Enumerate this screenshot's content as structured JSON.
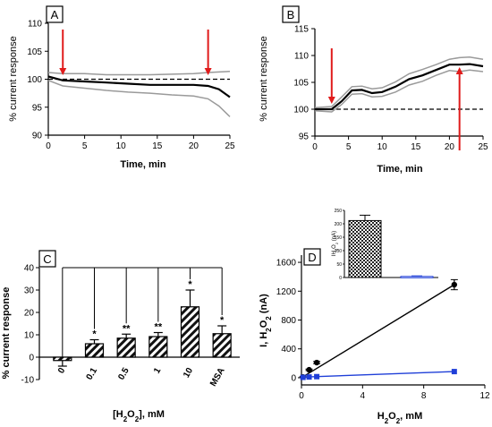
{
  "chart_data": [
    {
      "panel": "A",
      "type": "line",
      "label": "A",
      "xlabel": "Time, min",
      "ylabel": "% current response",
      "xlim": [
        0,
        25
      ],
      "ylim": [
        90,
        110
      ],
      "xticks": [
        "0",
        "5",
        "10",
        "15",
        "20",
        "25"
      ],
      "yticks": [
        "90",
        "95",
        "100",
        "105",
        "110"
      ],
      "baseline": 100,
      "arrows_at_x": [
        2,
        22
      ],
      "mean": {
        "x": [
          0,
          2,
          5,
          8,
          11,
          14,
          17,
          20,
          22,
          23.5,
          25
        ],
        "y": [
          100.5,
          99.8,
          99.6,
          99.4,
          99.2,
          99.0,
          99.0,
          99.0,
          98.8,
          98.2,
          96.8
        ]
      },
      "upper": {
        "x": [
          0,
          2,
          5,
          8,
          11,
          14,
          17,
          20,
          22,
          23.5,
          25
        ],
        "y": [
          101.2,
          101.0,
          101.0,
          100.8,
          100.8,
          100.8,
          100.9,
          101.0,
          101.2,
          101.3,
          101.4
        ]
      },
      "lower": {
        "x": [
          0,
          2,
          5,
          8,
          11,
          14,
          17,
          20,
          22,
          23.5,
          25
        ],
        "y": [
          99.8,
          98.8,
          98.4,
          98.0,
          97.7,
          97.5,
          97.2,
          97.0,
          96.5,
          95.2,
          93.3
        ]
      }
    },
    {
      "panel": "B",
      "type": "line",
      "label": "B",
      "xlabel": "Time, min",
      "ylabel": "% current response",
      "xlim": [
        0,
        25
      ],
      "ylim": [
        95,
        115
      ],
      "xticks": [
        "0",
        "5",
        "10",
        "15",
        "20",
        "25"
      ],
      "yticks": [
        "95",
        "100",
        "105",
        "110",
        "115"
      ],
      "baseline": 100,
      "arrows_down_at_x": [
        2.5
      ],
      "arrows_up_at_x": [
        21.5
      ],
      "mean": {
        "x": [
          0,
          2.5,
          4,
          5.5,
          7,
          8.5,
          10,
          12,
          14,
          16,
          18,
          20,
          21.5,
          23,
          25
        ],
        "y": [
          100,
          100,
          101.5,
          103.5,
          103.6,
          103,
          103.2,
          104.2,
          105.6,
          106.3,
          107.3,
          108.3,
          108.3,
          108.4,
          108
        ]
      },
      "upper": {
        "x": [
          0,
          2.5,
          4,
          5.5,
          7,
          8.5,
          10,
          12,
          14,
          16,
          18,
          20,
          21.5,
          23,
          25
        ],
        "y": [
          100.3,
          100.5,
          102.3,
          104.2,
          104.3,
          103.8,
          104.0,
          105.1,
          106.6,
          107.4,
          108.3,
          109.3,
          109.6,
          109.7,
          109.3
        ]
      },
      "lower": {
        "x": [
          0,
          2.5,
          4,
          5.5,
          7,
          8.5,
          10,
          12,
          14,
          16,
          18,
          20,
          21.5,
          23,
          25
        ],
        "y": [
          99.7,
          99.5,
          100.9,
          102.8,
          102.9,
          102.3,
          102.4,
          103.2,
          104.5,
          105.2,
          106.3,
          107.2,
          107.0,
          107.3,
          107.0
        ]
      }
    },
    {
      "panel": "C",
      "type": "bar",
      "label": "C",
      "xlabel": "[H2O2], mM",
      "ylabel": "% current response",
      "ylim": [
        -10,
        40
      ],
      "yticks": [
        "-10",
        "0",
        "10",
        "20",
        "30",
        "40"
      ],
      "categories": [
        "0",
        "0.1",
        "0.5",
        "1",
        "10",
        "MSA"
      ],
      "values": [
        -1.5,
        6,
        8.5,
        9.2,
        22.5,
        10.5
      ],
      "errors": [
        2.5,
        1.8,
        1.8,
        1.8,
        7.5,
        3.5
      ],
      "significance": [
        "",
        "*",
        "**",
        "**",
        "*",
        "*"
      ]
    },
    {
      "panel": "D",
      "type": "scatter",
      "label": "D",
      "xlabel": "H2O2, mM",
      "ylabel": "I, H2O2 (nA)",
      "xlim": [
        0,
        12
      ],
      "ylim": [
        -100,
        1700
      ],
      "xticks": [
        "0",
        "4",
        "8",
        "12"
      ],
      "yticks": [
        "0",
        "400",
        "800",
        "1200",
        "1600"
      ],
      "series": [
        {
          "color": "#000000",
          "x": [
            0.1,
            0.5,
            1,
            10
          ],
          "y": [
            10,
            110,
            210,
            1290
          ],
          "err": [
            5,
            10,
            15,
            70
          ],
          "fit": [
            [
              0,
              0
            ],
            [
              10,
              1290
            ]
          ]
        },
        {
          "color": "#1f3fd8",
          "x": [
            0.1,
            0.5,
            1,
            10
          ],
          "y": [
            5,
            10,
            15,
            85
          ],
          "err": [
            0,
            0,
            0,
            0
          ],
          "fit": [
            [
              0,
              8
            ],
            [
              10,
              85
            ]
          ]
        }
      ],
      "inset": {
        "type": "bar",
        "ylabel": "I H2O2 (nA)",
        "ylim": [
          0,
          250
        ],
        "yticks": [
          "0",
          "50",
          "100",
          "150",
          "200",
          "250"
        ],
        "values": [
          212,
          4
        ],
        "errors": [
          20,
          2
        ]
      }
    }
  ]
}
